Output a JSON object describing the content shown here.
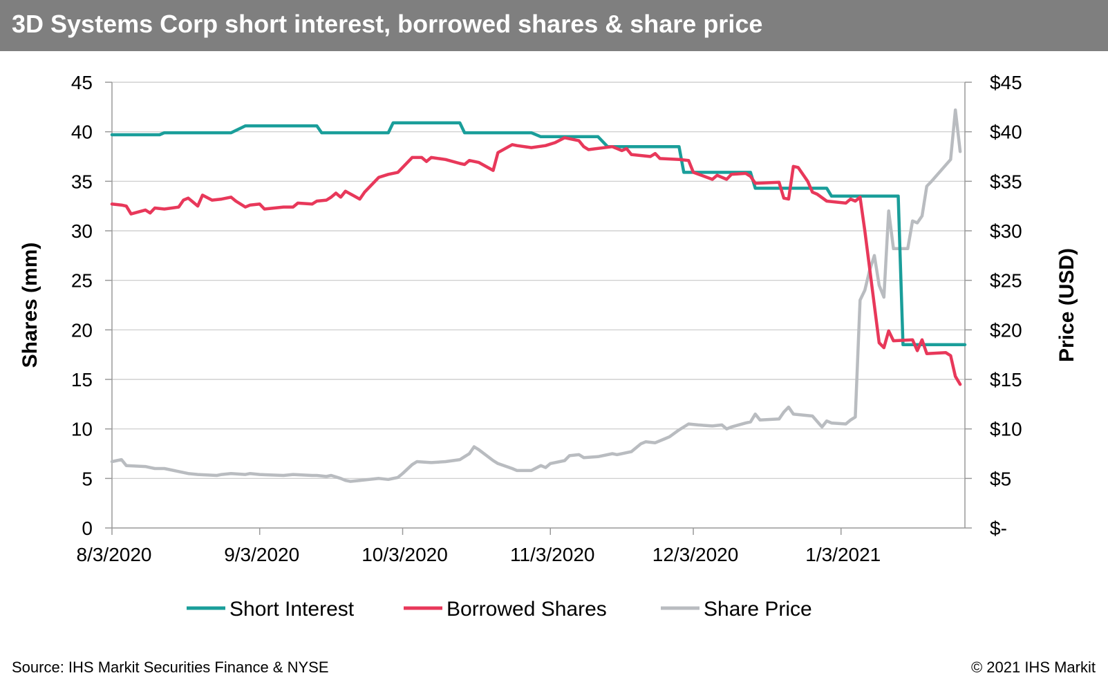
{
  "title": "3D Systems Corp short interest, borrowed shares & share price",
  "source": "Source: IHS Markit Securities Finance & NYSE",
  "copyright": "© 2021 IHS Markit",
  "colors": {
    "title_bar": "#7f7f7f",
    "short_interest": "#1a9e9a",
    "borrowed_shares": "#e8385a",
    "share_price": "#b9bcc0",
    "gridline": "#c8c8c8"
  },
  "chart_data": {
    "type": "line",
    "ylabel": "Shares (mm)",
    "y2label": "Price (USD)",
    "ylim": [
      0,
      45
    ],
    "y2lim": [
      0,
      45
    ],
    "yticks": [
      0,
      5,
      10,
      15,
      20,
      25,
      30,
      35,
      40,
      45
    ],
    "y2ticks": [
      "$-",
      "$5",
      "$10",
      "$15",
      "$20",
      "$25",
      "$30",
      "$35",
      "$40",
      "$45"
    ],
    "xticks": [
      "8/3/2020",
      "9/3/2020",
      "10/3/2020",
      "11/3/2020",
      "12/3/2020",
      "1/3/2021"
    ],
    "xlim": [
      "2020-08-03",
      "2021-01-29"
    ],
    "grid": true,
    "legend_position": "bottom",
    "series": [
      {
        "name": "Short Interest",
        "axis": "left",
        "points": [
          [
            "2020-08-03",
            39.7
          ],
          [
            "2020-08-13",
            39.7
          ],
          [
            "2020-08-14",
            39.9
          ],
          [
            "2020-08-28",
            39.9
          ],
          [
            "2020-08-31",
            40.6
          ],
          [
            "2020-09-15",
            40.6
          ],
          [
            "2020-09-16",
            39.9
          ],
          [
            "2020-09-30",
            39.9
          ],
          [
            "2020-10-01",
            40.9
          ],
          [
            "2020-10-15",
            40.9
          ],
          [
            "2020-10-16",
            39.9
          ],
          [
            "2020-10-30",
            39.9
          ],
          [
            "2020-11-01",
            39.5
          ],
          [
            "2020-11-13",
            39.5
          ],
          [
            "2020-11-15",
            38.5
          ],
          [
            "2020-11-30",
            38.5
          ],
          [
            "2020-12-01",
            35.9
          ],
          [
            "2020-12-15",
            35.9
          ],
          [
            "2020-12-16",
            34.3
          ],
          [
            "2020-12-31",
            34.3
          ],
          [
            "2021-01-01",
            33.5
          ],
          [
            "2021-01-15",
            33.5
          ],
          [
            "2021-01-16",
            18.5
          ],
          [
            "2021-01-29",
            18.5
          ]
        ]
      },
      {
        "name": "Borrowed Shares",
        "axis": "left",
        "points": [
          [
            "2020-08-03",
            32.7
          ],
          [
            "2020-08-05",
            32.6
          ],
          [
            "2020-08-06",
            32.5
          ],
          [
            "2020-08-07",
            31.7
          ],
          [
            "2020-08-10",
            32.1
          ],
          [
            "2020-08-11",
            31.8
          ],
          [
            "2020-08-12",
            32.3
          ],
          [
            "2020-08-14",
            32.2
          ],
          [
            "2020-08-17",
            32.4
          ],
          [
            "2020-08-18",
            33.1
          ],
          [
            "2020-08-19",
            33.3
          ],
          [
            "2020-08-20",
            32.9
          ],
          [
            "2020-08-21",
            32.5
          ],
          [
            "2020-08-22",
            33.6
          ],
          [
            "2020-08-24",
            33.1
          ],
          [
            "2020-08-26",
            33.2
          ],
          [
            "2020-08-28",
            33.4
          ],
          [
            "2020-08-29",
            33.0
          ],
          [
            "2020-08-31",
            32.4
          ],
          [
            "2020-09-01",
            32.6
          ],
          [
            "2020-09-03",
            32.7
          ],
          [
            "2020-09-04",
            32.2
          ],
          [
            "2020-09-08",
            32.4
          ],
          [
            "2020-09-10",
            32.4
          ],
          [
            "2020-09-11",
            32.8
          ],
          [
            "2020-09-14",
            32.7
          ],
          [
            "2020-09-15",
            33.0
          ],
          [
            "2020-09-17",
            33.1
          ],
          [
            "2020-09-18",
            33.4
          ],
          [
            "2020-09-19",
            33.8
          ],
          [
            "2020-09-20",
            33.4
          ],
          [
            "2020-09-21",
            34.0
          ],
          [
            "2020-09-24",
            33.2
          ],
          [
            "2020-09-25",
            33.9
          ],
          [
            "2020-09-28",
            35.4
          ],
          [
            "2020-09-30",
            35.7
          ],
          [
            "2020-10-02",
            35.9
          ],
          [
            "2020-10-05",
            37.4
          ],
          [
            "2020-10-07",
            37.4
          ],
          [
            "2020-10-08",
            37.0
          ],
          [
            "2020-10-09",
            37.4
          ],
          [
            "2020-10-12",
            37.2
          ],
          [
            "2020-10-15",
            36.8
          ],
          [
            "2020-10-16",
            36.7
          ],
          [
            "2020-10-17",
            37.1
          ],
          [
            "2020-10-19",
            36.9
          ],
          [
            "2020-10-22",
            36.1
          ],
          [
            "2020-10-23",
            37.9
          ],
          [
            "2020-10-26",
            38.7
          ],
          [
            "2020-10-27",
            38.6
          ],
          [
            "2020-10-30",
            38.4
          ],
          [
            "2020-11-02",
            38.6
          ],
          [
            "2020-11-04",
            38.9
          ],
          [
            "2020-11-06",
            39.4
          ],
          [
            "2020-11-09",
            39.1
          ],
          [
            "2020-11-10",
            38.5
          ],
          [
            "2020-11-11",
            38.2
          ],
          [
            "2020-11-16",
            38.5
          ],
          [
            "2020-11-18",
            38.1
          ],
          [
            "2020-11-19",
            38.3
          ],
          [
            "2020-11-20",
            37.7
          ],
          [
            "2020-11-24",
            37.5
          ],
          [
            "2020-11-25",
            37.8
          ],
          [
            "2020-11-26",
            37.3
          ],
          [
            "2020-11-30",
            37.2
          ],
          [
            "2020-12-02",
            37.1
          ],
          [
            "2020-12-03",
            35.9
          ],
          [
            "2020-12-07",
            35.2
          ],
          [
            "2020-12-08",
            35.6
          ],
          [
            "2020-12-10",
            35.2
          ],
          [
            "2020-12-11",
            35.7
          ],
          [
            "2020-12-14",
            35.8
          ],
          [
            "2020-12-15",
            35.5
          ],
          [
            "2020-12-16",
            34.8
          ],
          [
            "2020-12-21",
            34.9
          ],
          [
            "2020-12-22",
            33.3
          ],
          [
            "2020-12-23",
            33.2
          ],
          [
            "2020-12-24",
            36.5
          ],
          [
            "2020-12-25",
            36.4
          ],
          [
            "2020-12-27",
            35.0
          ],
          [
            "2020-12-28",
            33.9
          ],
          [
            "2020-12-29",
            33.7
          ],
          [
            "2020-12-31",
            33.0
          ],
          [
            "2021-01-04",
            32.8
          ],
          [
            "2021-01-05",
            33.2
          ],
          [
            "2021-01-06",
            33.0
          ],
          [
            "2021-01-07",
            33.4
          ],
          [
            "2021-01-08",
            30.0
          ],
          [
            "2021-01-11",
            18.7
          ],
          [
            "2021-01-12",
            18.2
          ],
          [
            "2021-01-13",
            19.9
          ],
          [
            "2021-01-14",
            18.9
          ],
          [
            "2021-01-18",
            19.0
          ],
          [
            "2021-01-19",
            17.9
          ],
          [
            "2021-01-20",
            19.0
          ],
          [
            "2021-01-21",
            17.6
          ],
          [
            "2021-01-25",
            17.7
          ],
          [
            "2021-01-26",
            17.4
          ],
          [
            "2021-01-27",
            15.3
          ],
          [
            "2021-01-28",
            14.5
          ]
        ]
      },
      {
        "name": "Share Price",
        "axis": "right",
        "points": [
          [
            "2020-08-03",
            6.7
          ],
          [
            "2020-08-05",
            6.9
          ],
          [
            "2020-08-06",
            6.3
          ],
          [
            "2020-08-10",
            6.2
          ],
          [
            "2020-08-11",
            6.1
          ],
          [
            "2020-08-12",
            6.0
          ],
          [
            "2020-08-14",
            6.0
          ],
          [
            "2020-08-17",
            5.7
          ],
          [
            "2020-08-19",
            5.5
          ],
          [
            "2020-08-21",
            5.4
          ],
          [
            "2020-08-25",
            5.3
          ],
          [
            "2020-08-26",
            5.4
          ],
          [
            "2020-08-28",
            5.5
          ],
          [
            "2020-08-31",
            5.4
          ],
          [
            "2020-09-01",
            5.5
          ],
          [
            "2020-09-03",
            5.4
          ],
          [
            "2020-09-08",
            5.3
          ],
          [
            "2020-09-10",
            5.4
          ],
          [
            "2020-09-14",
            5.3
          ],
          [
            "2020-09-15",
            5.3
          ],
          [
            "2020-09-17",
            5.2
          ],
          [
            "2020-09-18",
            5.3
          ],
          [
            "2020-09-20",
            5.0
          ],
          [
            "2020-09-21",
            4.8
          ],
          [
            "2020-09-22",
            4.7
          ],
          [
            "2020-09-24",
            4.8
          ],
          [
            "2020-09-28",
            5.0
          ],
          [
            "2020-09-30",
            4.9
          ],
          [
            "2020-10-01",
            5.0
          ],
          [
            "2020-10-02",
            5.1
          ],
          [
            "2020-10-03",
            5.5
          ],
          [
            "2020-10-05",
            6.4
          ],
          [
            "2020-10-06",
            6.7
          ],
          [
            "2020-10-09",
            6.6
          ],
          [
            "2020-10-12",
            6.7
          ],
          [
            "2020-10-15",
            6.9
          ],
          [
            "2020-10-16",
            7.2
          ],
          [
            "2020-10-17",
            7.5
          ],
          [
            "2020-10-18",
            8.2
          ],
          [
            "2020-10-19",
            7.9
          ],
          [
            "2020-10-22",
            6.8
          ],
          [
            "2020-10-23",
            6.5
          ],
          [
            "2020-10-26",
            6.0
          ],
          [
            "2020-10-27",
            5.8
          ],
          [
            "2020-10-30",
            5.8
          ],
          [
            "2020-11-01",
            6.3
          ],
          [
            "2020-11-02",
            6.1
          ],
          [
            "2020-11-03",
            6.5
          ],
          [
            "2020-11-06",
            6.8
          ],
          [
            "2020-11-07",
            7.3
          ],
          [
            "2020-11-09",
            7.4
          ],
          [
            "2020-11-10",
            7.1
          ],
          [
            "2020-11-13",
            7.2
          ],
          [
            "2020-11-16",
            7.5
          ],
          [
            "2020-11-17",
            7.4
          ],
          [
            "2020-11-20",
            7.7
          ],
          [
            "2020-11-22",
            8.5
          ],
          [
            "2020-11-23",
            8.7
          ],
          [
            "2020-11-25",
            8.6
          ],
          [
            "2020-11-27",
            9.0
          ],
          [
            "2020-11-28",
            9.2
          ],
          [
            "2020-11-30",
            9.9
          ],
          [
            "2020-12-02",
            10.5
          ],
          [
            "2020-12-04",
            10.4
          ],
          [
            "2020-12-07",
            10.3
          ],
          [
            "2020-12-09",
            10.4
          ],
          [
            "2020-12-10",
            10.0
          ],
          [
            "2020-12-11",
            10.2
          ],
          [
            "2020-12-14",
            10.6
          ],
          [
            "2020-12-15",
            10.7
          ],
          [
            "2020-12-16",
            11.5
          ],
          [
            "2020-12-17",
            10.9
          ],
          [
            "2020-12-21",
            11.0
          ],
          [
            "2020-12-22",
            11.7
          ],
          [
            "2020-12-23",
            12.2
          ],
          [
            "2020-12-24",
            11.5
          ],
          [
            "2020-12-28",
            11.3
          ],
          [
            "2020-12-30",
            10.2
          ],
          [
            "2020-12-31",
            10.8
          ],
          [
            "2021-01-01",
            10.6
          ],
          [
            "2021-01-04",
            10.5
          ],
          [
            "2021-01-05",
            10.9
          ],
          [
            "2021-01-06",
            11.2
          ],
          [
            "2021-01-07",
            23.0
          ],
          [
            "2021-01-08",
            24.0
          ],
          [
            "2021-01-09",
            26.0
          ],
          [
            "2021-01-10",
            27.5
          ],
          [
            "2021-01-11",
            24.5
          ],
          [
            "2021-01-12",
            23.3
          ],
          [
            "2021-01-13",
            32.0
          ],
          [
            "2021-01-14",
            28.2
          ],
          [
            "2021-01-17",
            28.2
          ],
          [
            "2021-01-18",
            31.0
          ],
          [
            "2021-01-19",
            30.8
          ],
          [
            "2021-01-20",
            31.5
          ],
          [
            "2021-01-21",
            34.5
          ],
          [
            "2021-01-22",
            35.0
          ],
          [
            "2021-01-26",
            37.2
          ],
          [
            "2021-01-27",
            42.2
          ],
          [
            "2021-01-28",
            38.0
          ]
        ]
      }
    ]
  }
}
